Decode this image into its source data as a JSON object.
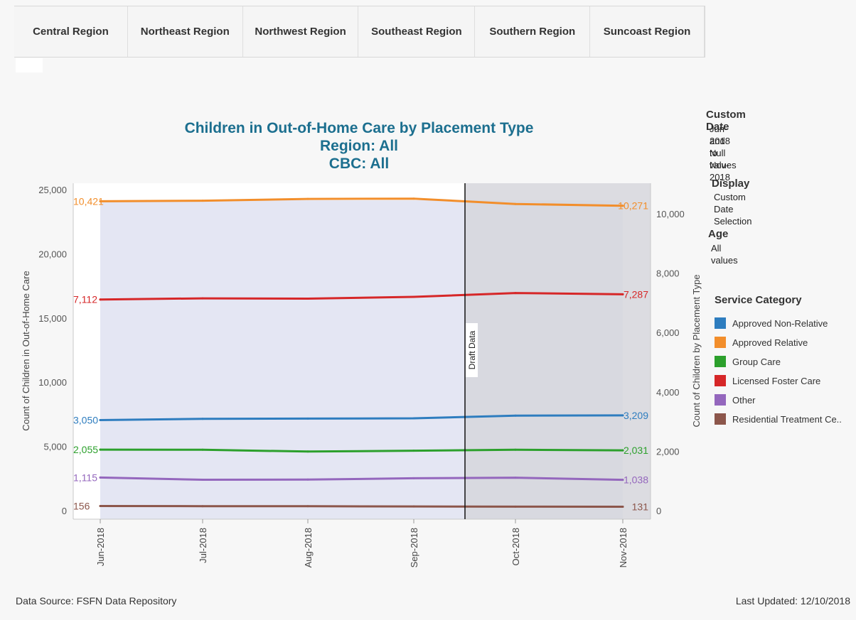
{
  "tabs": [
    "Central Region",
    "Northeast Region",
    "Northwest Region",
    "Southeast Region",
    "Southern Region",
    "Suncoast Region"
  ],
  "title_lines": [
    "Children in Out-of-Home Care by Placement Type",
    "Region: All",
    "CBC: All"
  ],
  "filters": {
    "custom_date_title": "Custom Date",
    "custom_date_value_1": "Jun-2018 to Nov-2018",
    "custom_date_value_2": "and Null values",
    "display_title": "Display",
    "display_value": "Custom Date Selection",
    "age_title": "Age",
    "age_value": "All values"
  },
  "legend": {
    "title": "Service Category",
    "items": [
      {
        "label": "Approved Non-Relative",
        "color": "#2e7dbf"
      },
      {
        "label": "Approved Relative",
        "color": "#f28e2b"
      },
      {
        "label": "Group Care",
        "color": "#2ca02c"
      },
      {
        "label": "Licensed Foster Care",
        "color": "#d62728"
      },
      {
        "label": "Other",
        "color": "#9467bd"
      },
      {
        "label": "Residential Treatment Ce..",
        "color": "#8c564b"
      }
    ]
  },
  "footer": {
    "source": "Data Source: FSFN Data Repository",
    "updated": "Last Updated: 12/10/2018"
  },
  "chart_data": {
    "type": "line",
    "categories": [
      "Jun-2018",
      "Jul-2018",
      "Aug-2018",
      "Sep-2018",
      "Oct-2018",
      "Nov-2018"
    ],
    "ylabel_left": "Count of Children in Out-of-Home Care",
    "ylabel_right": "Count of Children by Placement Type",
    "yticks_left": [
      0,
      5000,
      10000,
      15000,
      20000,
      25000
    ],
    "yticks_left_labels": [
      "0",
      "5,000",
      "10,000",
      "15,000",
      "20,000",
      "25,000"
    ],
    "yticks_right": [
      0,
      2000,
      4000,
      6000,
      8000,
      10000
    ],
    "yticks_right_labels": [
      "0",
      "2,000",
      "4,000",
      "6,000",
      "8,000",
      "10,000"
    ],
    "ylim_right": [
      0,
      11000
    ],
    "draft_label": "Draft Data",
    "series": [
      {
        "name": "Approved Relative",
        "color": "#f28e2b",
        "values": [
          10421,
          10440,
          10500,
          10510,
          10330,
          10271
        ],
        "start_label": "10,421",
        "end_label": "10,271"
      },
      {
        "name": "Licensed Foster Care",
        "color": "#d62728",
        "values": [
          7112,
          7150,
          7140,
          7200,
          7330,
          7287
        ],
        "start_label": "7,112",
        "end_label": "7,287"
      },
      {
        "name": "Approved Non-Relative",
        "color": "#2e7dbf",
        "values": [
          3050,
          3090,
          3100,
          3110,
          3200,
          3209
        ],
        "start_label": "3,050",
        "end_label": "3,209"
      },
      {
        "name": "Group Care",
        "color": "#2ca02c",
        "values": [
          2055,
          2050,
          1990,
          2020,
          2050,
          2031
        ],
        "start_label": "2,055",
        "end_label": "2,031"
      },
      {
        "name": "Other",
        "color": "#9467bd",
        "values": [
          1115,
          1040,
          1045,
          1090,
          1110,
          1038
        ],
        "start_label": "1,115",
        "end_label": "1,038"
      },
      {
        "name": "Residential Treatment Ce..",
        "color": "#8c564b",
        "values": [
          156,
          150,
          148,
          140,
          135,
          131
        ],
        "start_label": "156",
        "end_label": "131"
      }
    ]
  }
}
